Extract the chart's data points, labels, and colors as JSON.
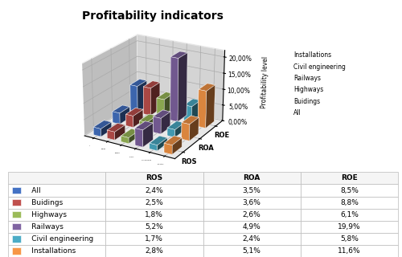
{
  "title": "Profitability indicators",
  "categories": [
    "ROS",
    "ROA",
    "ROE"
  ],
  "series": [
    {
      "label": "All",
      "color": "#4472C4",
      "values": [
        2.4,
        3.5,
        8.5
      ]
    },
    {
      "label": "Buidings",
      "color": "#C0504D",
      "values": [
        2.5,
        3.6,
        8.8
      ]
    },
    {
      "label": "Highways",
      "color": "#9BBB59",
      "values": [
        1.8,
        2.6,
        6.1
      ]
    },
    {
      "label": "Railways",
      "color": "#8064A2",
      "values": [
        5.2,
        4.9,
        19.9
      ]
    },
    {
      "label": "Civil engineering",
      "color": "#4BACC6",
      "values": [
        1.7,
        2.4,
        5.8
      ]
    },
    {
      "label": "Installations",
      "color": "#F79646",
      "values": [
        2.8,
        5.1,
        11.6
      ]
    }
  ],
  "ylabel": "Profitability level",
  "yticks": [
    0,
    5,
    10,
    15,
    20
  ],
  "ytick_labels": [
    "0,00%",
    "5,00%",
    "10,00%",
    "15,00%",
    "20,00%"
  ],
  "table_header": [
    "",
    "ROS",
    "ROA",
    "ROE"
  ],
  "table_rows": [
    [
      "All",
      "2,4%",
      "3,5%",
      "8,5%"
    ],
    [
      "Buidings",
      "2,5%",
      "3,6%",
      "8,8%"
    ],
    [
      "Highways",
      "1,8%",
      "2,6%",
      "6,1%"
    ],
    [
      "Railways",
      "5,2%",
      "4,9%",
      "19,9%"
    ],
    [
      "Civil engineering",
      "1,7%",
      "2,4%",
      "5,8%"
    ],
    [
      "Installations",
      "2,8%",
      "5,1%",
      "11,6%"
    ]
  ],
  "row_colors": [
    "#4472C4",
    "#C0504D",
    "#9BBB59",
    "#8064A2",
    "#4BACC6",
    "#F79646"
  ],
  "elev": 22,
  "azim": -60
}
